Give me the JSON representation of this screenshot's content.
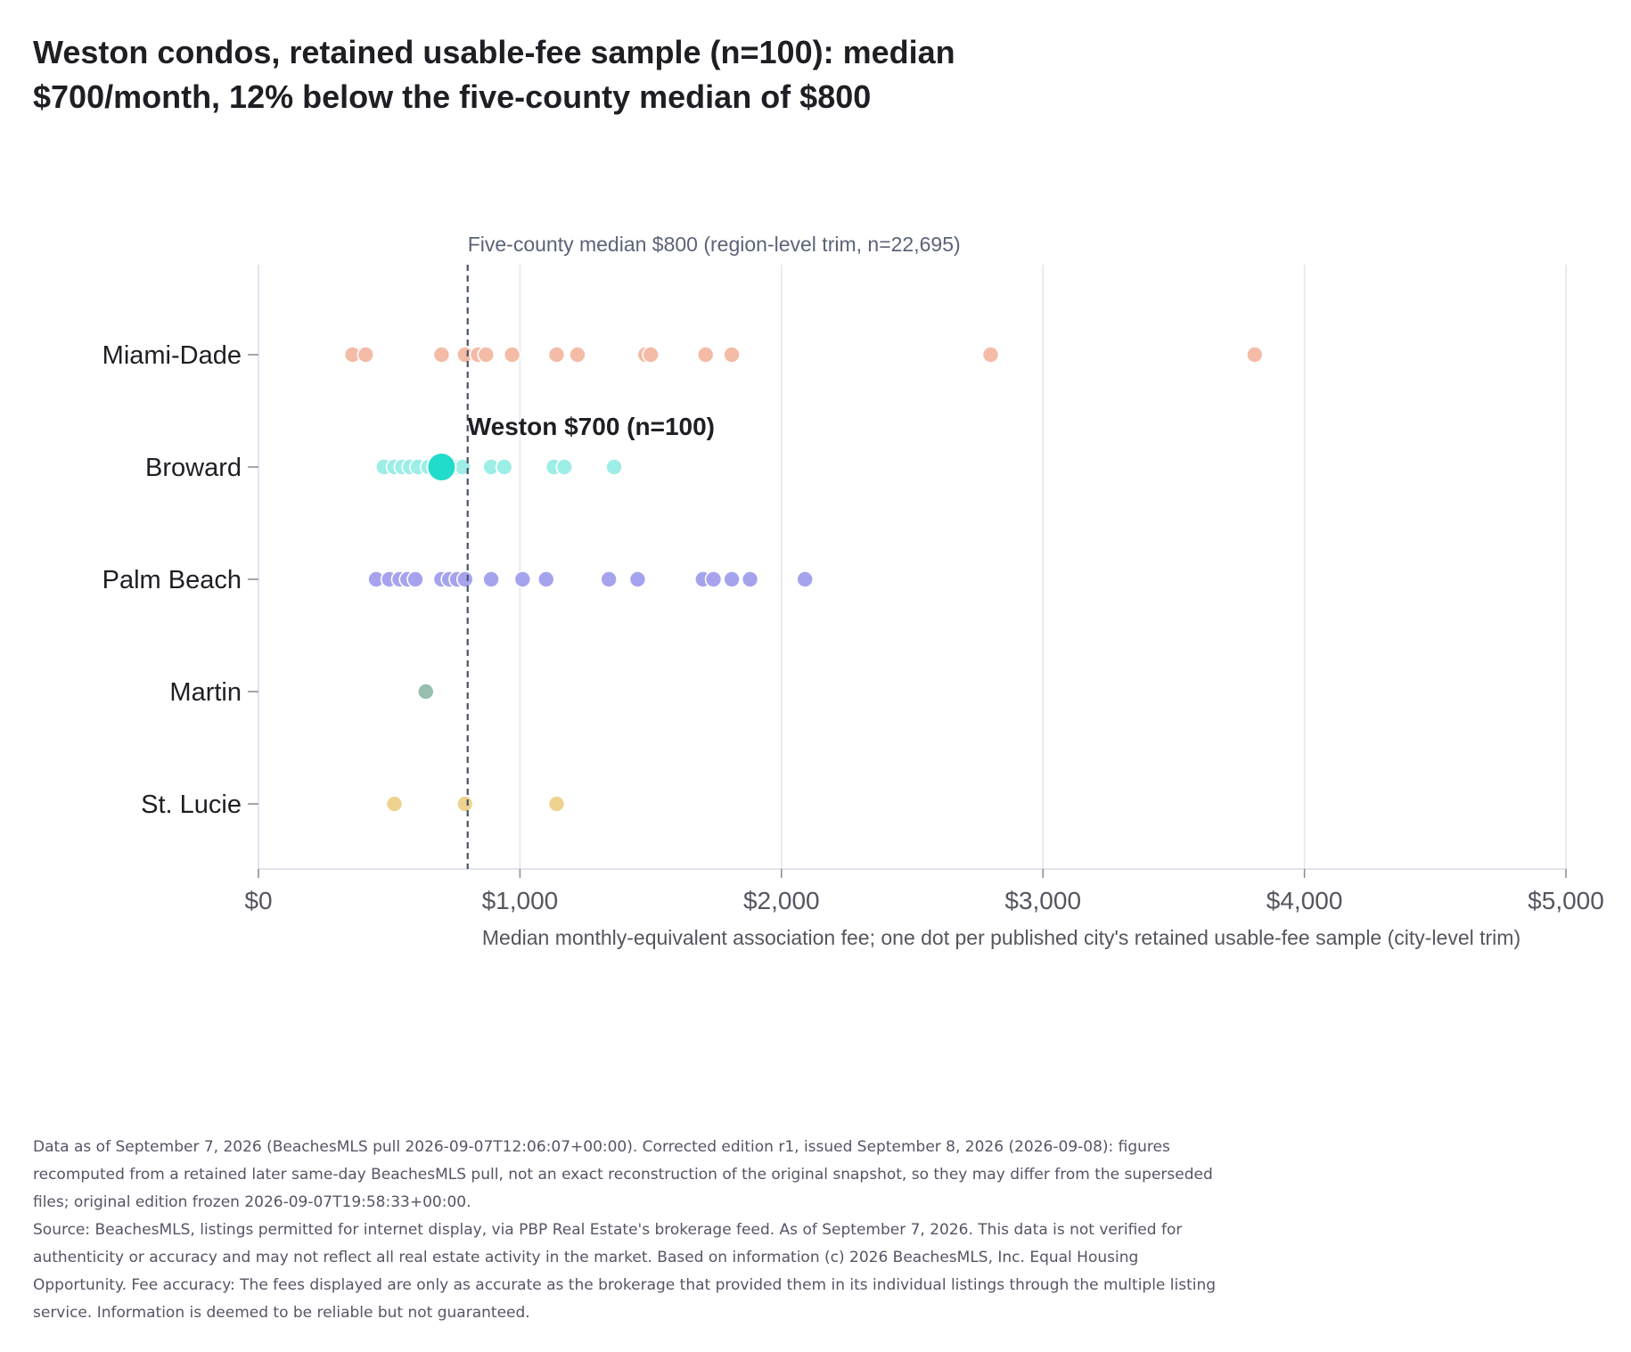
{
  "title_lines": [
    "Weston condos, retained usable-fee sample (n=100): median",
    "$700/month, 12% below the five-county median of $800"
  ],
  "notes": [
    "Data as of September 7, 2026 (BeachesMLS pull 2026-09-07T12:06:07+00:00). Corrected edition r1, issued September 8, 2026 (2026-09-08): figures recomputed from a retained later same-day BeachesMLS pull, not an exact reconstruction of the original snapshot, so they may differ from the superseded files; original edition frozen 2026-09-07T19:58:33+00:00.",
    "Source: BeachesMLS, listings permitted for internet display, via PBP Real Estate's brokerage feed. As of September 7, 2026. This data is not verified for authenticity or accuracy and may not reflect all real estate activity in the market. Based on information (c) 2026 BeachesMLS, Inc. Equal Housing Opportunity. Fee accuracy: The fees displayed are only as accurate as the brokerage that provided them in its individual listings through the multiple listing service. Information is deemed to be reliable but not guaranteed."
  ],
  "chart_data": {
    "type": "scatter",
    "title": "Weston condos, retained usable-fee sample (n=100): median $700/month, 12% below the five-county median of $800",
    "xlabel": "Median monthly-equivalent association fee; one dot per published city's retained usable-fee sample (city-level trim)",
    "ylabel": "",
    "xlim": [
      0,
      5000
    ],
    "x_ticks": [
      0,
      1000,
      2000,
      3000,
      4000,
      5000
    ],
    "x_tick_labels": [
      "$0",
      "$1,000",
      "$2,000",
      "$3,000",
      "$4,000",
      "$5,000"
    ],
    "categories": [
      "Miami-Dade",
      "Broward",
      "Palm Beach",
      "Martin",
      "St. Lucie"
    ],
    "grid": "vertical",
    "series": [
      {
        "name": "Miami-Dade",
        "color": "#f4bba6",
        "values": [
          360,
          410,
          700,
          790,
          840,
          870,
          970,
          1140,
          1220,
          1480,
          1500,
          1710,
          1810,
          2800,
          3810
        ]
      },
      {
        "name": "Broward",
        "color": "#9deee6",
        "values": [
          480,
          520,
          550,
          580,
          610,
          650,
          680,
          720,
          760,
          780,
          890,
          940,
          1130,
          1170,
          1360
        ]
      },
      {
        "name": "Palm Beach",
        "color": "#a6a3ee",
        "values": [
          450,
          500,
          540,
          570,
          600,
          700,
          730,
          760,
          790,
          890,
          1010,
          1100,
          1340,
          1450,
          1700,
          1740,
          1810,
          1880,
          2090
        ]
      },
      {
        "name": "Martin",
        "color": "#96bfad",
        "values": [
          640
        ]
      },
      {
        "name": "St. Lucie",
        "color": "#eed290",
        "values": [
          520,
          790,
          1140
        ]
      }
    ],
    "highlight": {
      "category": "Broward",
      "value": 700,
      "color": "#22dccb",
      "label": "Weston $700 (n=100)"
    },
    "reference_line": {
      "value": 800,
      "label": "Five-county median $800 (region-level trim, n=22,695)"
    }
  }
}
